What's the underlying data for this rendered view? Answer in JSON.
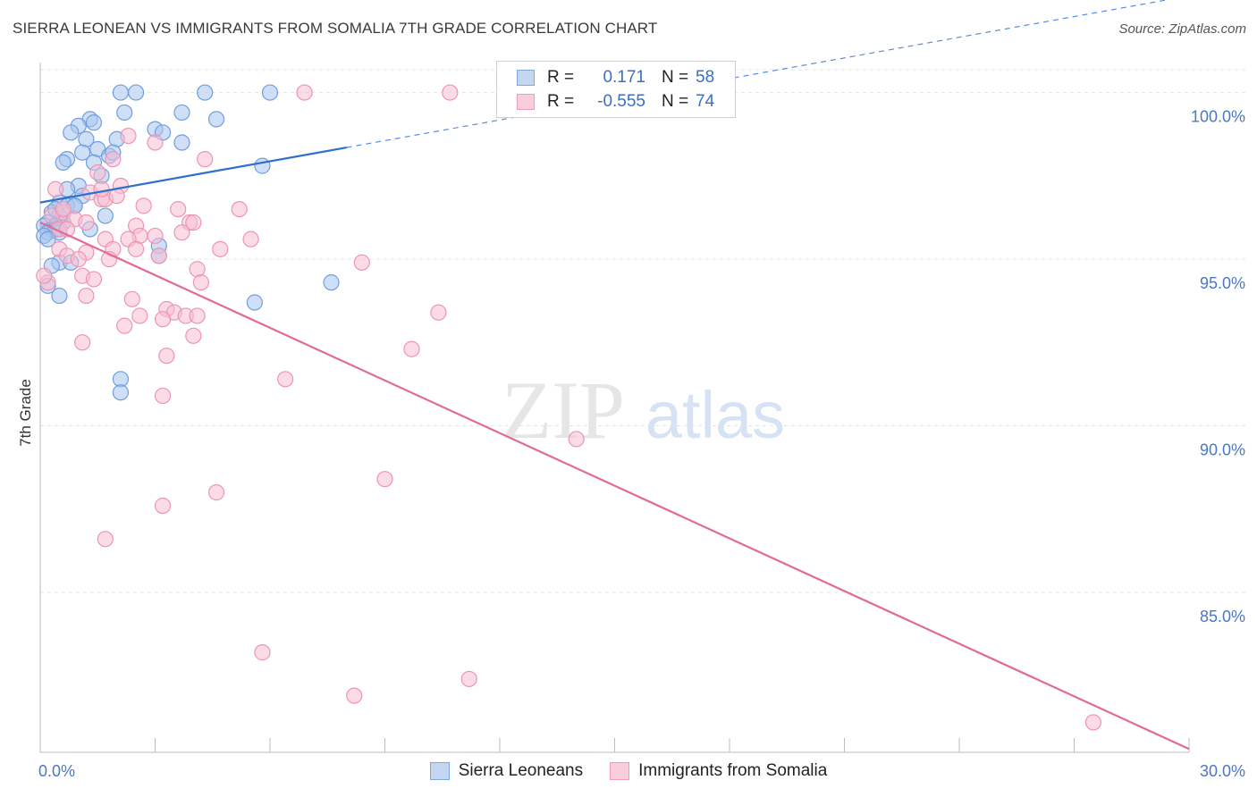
{
  "header": {
    "title": "SIERRA LEONEAN VS IMMIGRANTS FROM SOMALIA 7TH GRADE CORRELATION CHART",
    "source": "Source: ZipAtlas.com"
  },
  "watermark": {
    "part1": "ZIP",
    "part2": "atlas"
  },
  "colors": {
    "blue_fill": "#a8c6ef",
    "blue_stroke": "#6f9ee0",
    "blue_line": "#2f6fce",
    "pink_fill": "#f7bfd1",
    "pink_stroke": "#ee94b3",
    "pink_line": "#e06a98",
    "tick_text": "#4a78c2"
  },
  "legend": {
    "r_label": "R =",
    "n_label": "N =",
    "series": [
      {
        "r": "0.171",
        "n": "58"
      },
      {
        "r": "-0.555",
        "n": "74"
      }
    ]
  },
  "bottom_legend": [
    "Sierra Leoneans",
    "Immigrants from Somalia"
  ],
  "chart_data": {
    "type": "scatter",
    "title": "SIERRA LEONEAN VS IMMIGRANTS FROM SOMALIA 7TH GRADE CORRELATION CHART",
    "ylabel": "7th Grade",
    "xlim": [
      0,
      30
    ],
    "ylim": [
      80.2,
      100.9
    ],
    "x_tick_labels": [
      "0.0%",
      "30.0%"
    ],
    "y_ticks": [
      85,
      90,
      95,
      100
    ],
    "y_tick_labels": [
      "85.0%",
      "90.0%",
      "95.0%",
      "100.0%"
    ],
    "grid": true,
    "legend_position": "top-center",
    "series": [
      {
        "name": "Sierra Leoneans",
        "r": 0.171,
        "n": 58,
        "trend": {
          "x0": 0,
          "y0": 96.7,
          "x1": 8,
          "y1": 98.35,
          "dashed_to_x": 30,
          "dashed_to_y": 102.9
        },
        "points": [
          [
            2.1,
            100
          ],
          [
            2.5,
            100
          ],
          [
            4.3,
            100
          ],
          [
            6.0,
            100
          ],
          [
            1.3,
            99.2
          ],
          [
            1.4,
            99.1
          ],
          [
            2.2,
            99.4
          ],
          [
            3.7,
            99.4
          ],
          [
            4.6,
            99.2
          ],
          [
            1.0,
            99.0
          ],
          [
            0.8,
            98.8
          ],
          [
            1.2,
            98.6
          ],
          [
            2.0,
            98.6
          ],
          [
            3.0,
            98.9
          ],
          [
            3.2,
            98.8
          ],
          [
            3.7,
            98.5
          ],
          [
            1.1,
            98.2
          ],
          [
            1.5,
            98.3
          ],
          [
            1.8,
            98.1
          ],
          [
            0.7,
            98.0
          ],
          [
            0.6,
            97.9
          ],
          [
            1.4,
            97.9
          ],
          [
            5.8,
            97.8
          ],
          [
            1.6,
            97.5
          ],
          [
            1.0,
            97.2
          ],
          [
            0.7,
            97.1
          ],
          [
            1.1,
            96.9
          ],
          [
            0.5,
            96.7
          ],
          [
            0.7,
            96.6
          ],
          [
            0.9,
            96.6
          ],
          [
            0.3,
            96.4
          ],
          [
            0.5,
            96.3
          ],
          [
            1.7,
            96.3
          ],
          [
            0.2,
            96.1
          ],
          [
            0.4,
            96.0
          ],
          [
            0.6,
            96.1
          ],
          [
            0.1,
            96.0
          ],
          [
            0.3,
            95.9
          ],
          [
            0.4,
            95.9
          ],
          [
            0.2,
            95.8
          ],
          [
            0.5,
            95.8
          ],
          [
            1.3,
            95.9
          ],
          [
            0.1,
            95.7
          ],
          [
            3.1,
            95.4
          ],
          [
            3.1,
            95.1
          ],
          [
            0.5,
            94.9
          ],
          [
            0.8,
            94.9
          ],
          [
            7.6,
            94.3
          ],
          [
            0.2,
            94.2
          ],
          [
            0.5,
            93.9
          ],
          [
            5.6,
            93.7
          ],
          [
            0.3,
            94.8
          ],
          [
            0.2,
            95.6
          ],
          [
            2.1,
            91.4
          ],
          [
            2.1,
            91.0
          ],
          [
            0.4,
            96.5
          ],
          [
            1.9,
            98.2
          ],
          [
            0.9,
            96.6
          ]
        ]
      },
      {
        "name": "Immigrants from Somalia",
        "r": -0.555,
        "n": 74,
        "trend": {
          "x0": 0,
          "y0": 96.1,
          "x1": 30,
          "y1": 80.3
        },
        "points": [
          [
            6.9,
            100
          ],
          [
            10.7,
            100
          ],
          [
            2.3,
            98.7
          ],
          [
            3.0,
            98.5
          ],
          [
            1.9,
            98.0
          ],
          [
            4.3,
            98.0
          ],
          [
            1.5,
            97.6
          ],
          [
            2.1,
            97.2
          ],
          [
            0.4,
            97.1
          ],
          [
            1.3,
            97.0
          ],
          [
            1.6,
            96.8
          ],
          [
            1.7,
            96.8
          ],
          [
            2.7,
            96.6
          ],
          [
            3.6,
            96.5
          ],
          [
            5.2,
            96.5
          ],
          [
            0.6,
            96.4
          ],
          [
            0.3,
            96.3
          ],
          [
            0.9,
            96.2
          ],
          [
            1.2,
            96.1
          ],
          [
            2.5,
            96.0
          ],
          [
            3.9,
            96.1
          ],
          [
            4.0,
            96.1
          ],
          [
            0.5,
            95.9
          ],
          [
            0.7,
            95.9
          ],
          [
            2.6,
            95.7
          ],
          [
            3.0,
            95.7
          ],
          [
            3.7,
            95.8
          ],
          [
            1.7,
            95.6
          ],
          [
            2.3,
            95.6
          ],
          [
            5.5,
            95.6
          ],
          [
            0.5,
            95.3
          ],
          [
            1.2,
            95.2
          ],
          [
            1.9,
            95.3
          ],
          [
            2.5,
            95.3
          ],
          [
            4.7,
            95.3
          ],
          [
            0.7,
            95.1
          ],
          [
            1.0,
            95.0
          ],
          [
            1.8,
            95.0
          ],
          [
            3.1,
            95.1
          ],
          [
            8.4,
            94.9
          ],
          [
            4.1,
            94.7
          ],
          [
            1.1,
            94.5
          ],
          [
            1.4,
            94.4
          ],
          [
            4.2,
            94.3
          ],
          [
            0.2,
            94.3
          ],
          [
            0.1,
            94.5
          ],
          [
            1.2,
            93.9
          ],
          [
            2.4,
            93.8
          ],
          [
            3.3,
            93.5
          ],
          [
            3.5,
            93.4
          ],
          [
            10.4,
            93.4
          ],
          [
            2.6,
            93.3
          ],
          [
            3.2,
            93.2
          ],
          [
            3.8,
            93.3
          ],
          [
            4.1,
            93.3
          ],
          [
            2.2,
            93.0
          ],
          [
            4.0,
            92.7
          ],
          [
            1.1,
            92.5
          ],
          [
            9.7,
            92.3
          ],
          [
            3.3,
            92.1
          ],
          [
            6.4,
            91.4
          ],
          [
            3.2,
            90.9
          ],
          [
            14.0,
            89.6
          ],
          [
            9.0,
            88.4
          ],
          [
            4.6,
            88.0
          ],
          [
            3.2,
            87.6
          ],
          [
            1.7,
            86.6
          ],
          [
            5.8,
            83.2
          ],
          [
            11.2,
            82.4
          ],
          [
            8.2,
            81.9
          ],
          [
            27.5,
            81.1
          ],
          [
            0.6,
            96.5
          ],
          [
            1.6,
            97.1
          ],
          [
            2.0,
            96.9
          ]
        ]
      }
    ]
  }
}
